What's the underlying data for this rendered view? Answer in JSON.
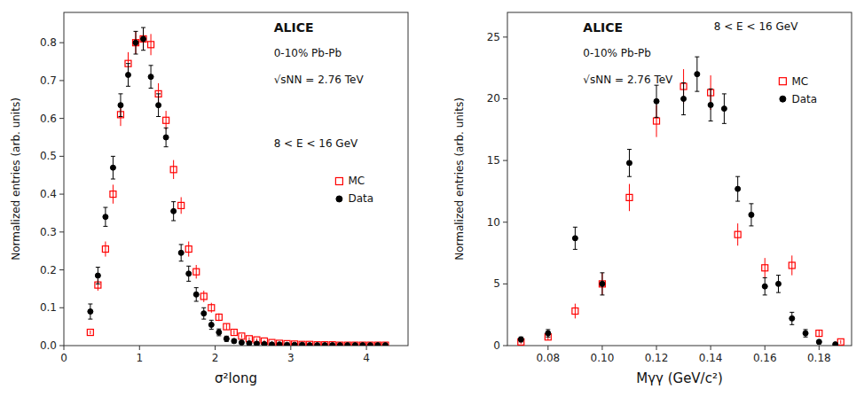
{
  "chart_data": [
    {
      "type": "scatter",
      "annotations": [
        "ALICE",
        "0-10% Pb-Pb",
        "√sNN = 2.76 TeV",
        "8 < E < 16 GeV"
      ],
      "x_label": "σ²long",
      "y_label": "Normalized entries (arb. units)",
      "xlim": [
        0,
        4.55
      ],
      "ylim": [
        0,
        0.88
      ],
      "xticks": [
        0,
        1,
        2,
        3,
        4
      ],
      "yticks": [
        {
          "value": 0.0,
          "label": "0.0"
        },
        0.1,
        0.2,
        0.3,
        0.4,
        0.5,
        0.6,
        0.7,
        0.8
      ],
      "grid": false,
      "legend": "center right",
      "series": [
        {
          "name": "MC",
          "color": "#FF0000",
          "marker": "square-open",
          "x": [
            0.35,
            0.45,
            0.55,
            0.65,
            0.75,
            0.85,
            0.95,
            1.05,
            1.15,
            1.25,
            1.35,
            1.45,
            1.55,
            1.65,
            1.75,
            1.85,
            1.95,
            2.05,
            2.15,
            2.25,
            2.35,
            2.45,
            2.55,
            2.65,
            2.75,
            2.85,
            2.95,
            3.05,
            3.15,
            3.25,
            3.35,
            3.45,
            3.55,
            3.65,
            3.75,
            3.85,
            3.95,
            4.05,
            4.15,
            4.25
          ],
          "values": [
            0.035,
            0.16,
            0.255,
            0.4,
            0.61,
            0.745,
            0.8,
            0.81,
            0.795,
            0.665,
            0.595,
            0.465,
            0.37,
            0.255,
            0.195,
            0.13,
            0.1,
            0.075,
            0.05,
            0.035,
            0.025,
            0.018,
            0.015,
            0.012,
            0.008,
            0.006,
            0.005,
            0.004,
            0.003,
            0.003,
            0.002,
            0.002,
            0.002,
            0.001,
            0.001,
            0.001,
            0.001,
            0.001,
            0.001,
            0.001
          ],
          "errors": [
            0.005,
            0.015,
            0.02,
            0.025,
            0.03,
            0.03,
            0.03,
            0.03,
            0.028,
            0.028,
            0.025,
            0.025,
            0.022,
            0.02,
            0.018,
            0.015,
            0.013,
            0.01,
            0.008,
            0.006,
            0.005,
            0.004,
            0.004,
            0.003,
            0.003,
            0.002,
            0.002,
            0.002,
            0.001,
            0.001,
            0.001,
            0.001,
            0.001,
            0.001,
            0.001,
            0.001,
            0.001,
            0.001,
            0.001,
            0.001
          ]
        },
        {
          "name": "Data",
          "color": "#000000",
          "marker": "circle",
          "x": [
            0.35,
            0.45,
            0.55,
            0.65,
            0.75,
            0.85,
            0.95,
            1.05,
            1.15,
            1.25,
            1.35,
            1.45,
            1.55,
            1.65,
            1.75,
            1.85,
            1.95,
            2.05,
            2.15,
            2.25,
            2.35,
            2.45,
            2.55,
            2.65,
            2.75,
            2.85,
            2.95,
            3.05,
            3.15,
            3.25,
            3.35,
            3.45,
            3.55,
            3.65,
            3.75,
            3.85,
            3.95,
            4.05,
            4.15,
            4.25
          ],
          "values": [
            0.09,
            0.185,
            0.34,
            0.47,
            0.635,
            0.715,
            0.8,
            0.81,
            0.71,
            0.635,
            0.55,
            0.355,
            0.245,
            0.19,
            0.135,
            0.085,
            0.055,
            0.035,
            0.018,
            0.012,
            0.008,
            0.006,
            0.005,
            0.004,
            0.003,
            0.003,
            0.002,
            0.002,
            0.002,
            0.001,
            0.001,
            0.001,
            0.001,
            0.001,
            0.001,
            0.001,
            0.001,
            0.001,
            0.001,
            0.001
          ],
          "errors": [
            0.02,
            0.022,
            0.025,
            0.03,
            0.03,
            0.03,
            0.03,
            0.03,
            0.03,
            0.03,
            0.025,
            0.025,
            0.022,
            0.02,
            0.018,
            0.015,
            0.012,
            0.009,
            0.007,
            0.005,
            0.004,
            0.003,
            0.003,
            0.003,
            0.002,
            0.002,
            0.001,
            0.001,
            0.001,
            0.001,
            0.001,
            0.001,
            0.001,
            0.001,
            0.001,
            0.001,
            0.001,
            0.001,
            0.001,
            0.001
          ]
        }
      ]
    },
    {
      "type": "scatter",
      "annotations": [
        "ALICE",
        "0-10% Pb-Pb",
        "√sNN = 2.76 TeV",
        "8 < E < 16 GeV"
      ],
      "x_label": "Mγγ (GeV/c²)",
      "y_label": "Normalized entries (arb. units)",
      "xlim": [
        0.065,
        0.192
      ],
      "ylim": [
        0,
        27
      ],
      "xticks": [
        0.08,
        {
          "value": 0.1,
          "label": "0.10"
        },
        0.12,
        0.14,
        0.16,
        0.18
      ],
      "yticks": [
        0,
        5,
        10,
        15,
        20,
        25
      ],
      "grid": false,
      "legend": "upper right",
      "series": [
        {
          "name": "MC",
          "color": "#FF0000",
          "marker": "square-open",
          "x": [
            0.07,
            0.08,
            0.09,
            0.1,
            0.11,
            0.12,
            0.13,
            0.14,
            0.15,
            0.16,
            0.17,
            0.18,
            0.188
          ],
          "values": [
            0.3,
            0.7,
            2.8,
            5.0,
            12.0,
            18.2,
            21.0,
            20.5,
            9.0,
            6.3,
            6.5,
            1.0,
            0.3
          ],
          "errors": [
            0.15,
            0.25,
            0.6,
            0.9,
            1.1,
            1.3,
            1.4,
            1.4,
            0.9,
            0.8,
            0.8,
            0.3,
            0.15
          ]
        },
        {
          "name": "Data",
          "color": "#000000",
          "marker": "circle",
          "x": [
            0.07,
            0.08,
            0.09,
            0.1,
            0.11,
            0.12,
            0.13,
            0.135,
            0.14,
            0.145,
            0.15,
            0.155,
            0.16,
            0.165,
            0.17,
            0.175,
            0.18,
            0.186
          ],
          "values": [
            0.5,
            1.0,
            8.7,
            5.0,
            14.8,
            19.8,
            20.0,
            22.0,
            19.5,
            19.2,
            12.7,
            10.6,
            4.8,
            5.0,
            2.2,
            1.0,
            0.3,
            0.1
          ],
          "errors": [
            0.2,
            0.3,
            0.9,
            0.9,
            1.1,
            1.3,
            1.3,
            1.4,
            1.3,
            1.2,
            1.0,
            0.9,
            0.7,
            0.7,
            0.5,
            0.3,
            0.15,
            0.08
          ]
        }
      ]
    }
  ]
}
